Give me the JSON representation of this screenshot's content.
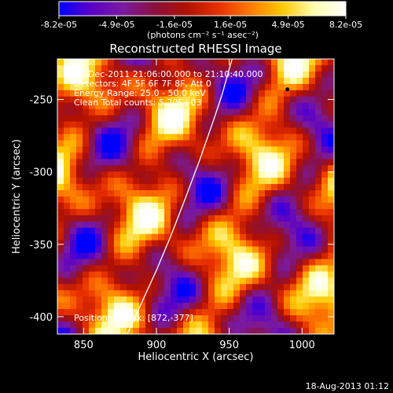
{
  "colors": {
    "background": "#000000",
    "text": "#ffffff",
    "limb": "#ffffff",
    "colorbar_stops": [
      "#0000ff",
      "#5a00c8",
      "#7a1aa0",
      "#8a1040",
      "#b01000",
      "#e83000",
      "#ff7a00",
      "#ffc800",
      "#ffffb0",
      "#ffffff"
    ]
  },
  "chart_data": {
    "type": "heatmap",
    "title": "Reconstructed RHESSI Image",
    "xlabel": "Heliocentric X (arcsec)",
    "ylabel": "Heliocentric Y (arcsec)",
    "xlim": [
      832,
      1022
    ],
    "ylim": [
      -412,
      -222
    ],
    "x_ticks": [
      850,
      900,
      950,
      1000
    ],
    "y_ticks": [
      -400,
      -350,
      -300,
      -250
    ],
    "x_tick_labels": [
      "850",
      "900",
      "950",
      "1000"
    ],
    "y_tick_labels": [
      "-400",
      "-350",
      "-300",
      "-250"
    ],
    "colorbar": {
      "min": -8.2e-05,
      "max": 8.2e-05,
      "ticks": [
        -8.2e-05,
        -4.9e-05,
        -1.6e-05,
        1.6e-05,
        4.9e-05,
        8.2e-05
      ],
      "tick_labels": [
        "-8.2e-05",
        "-4.9e-05",
        "-1.6e-05",
        "1.6e-05",
        "4.9e-05",
        "8.2e-05"
      ],
      "label": "(photons cm⁻² s⁻¹ asec⁻²)"
    },
    "annotations": {
      "time": "13-Dec-2011 21:06:00.000 to 21:10:40.000",
      "detectors": "Detectors: 4F 5F 6F 7F 8F, Att 0",
      "energy": "Energy Range: 25.0 - 50.0 keV",
      "clean": "Clean    Total counts: 5.20E+03",
      "peak": "Position of Peak: [872,-377]"
    },
    "peak": {
      "x": 872,
      "y": -377
    },
    "minimum_marker": {
      "x": 990,
      "y": -243
    },
    "limb_points": [
      [
        880,
        -412
      ],
      [
        890,
        -390
      ],
      [
        900,
        -368
      ],
      [
        910,
        -344
      ],
      [
        920,
        -318
      ],
      [
        930,
        -291
      ],
      [
        940,
        -262
      ],
      [
        945,
        -247
      ],
      [
        950,
        -229
      ],
      [
        952,
        -222
      ]
    ],
    "grid": false,
    "legend": "none"
  },
  "footer": {
    "timestamp": "18-Aug-2013 01:12"
  }
}
